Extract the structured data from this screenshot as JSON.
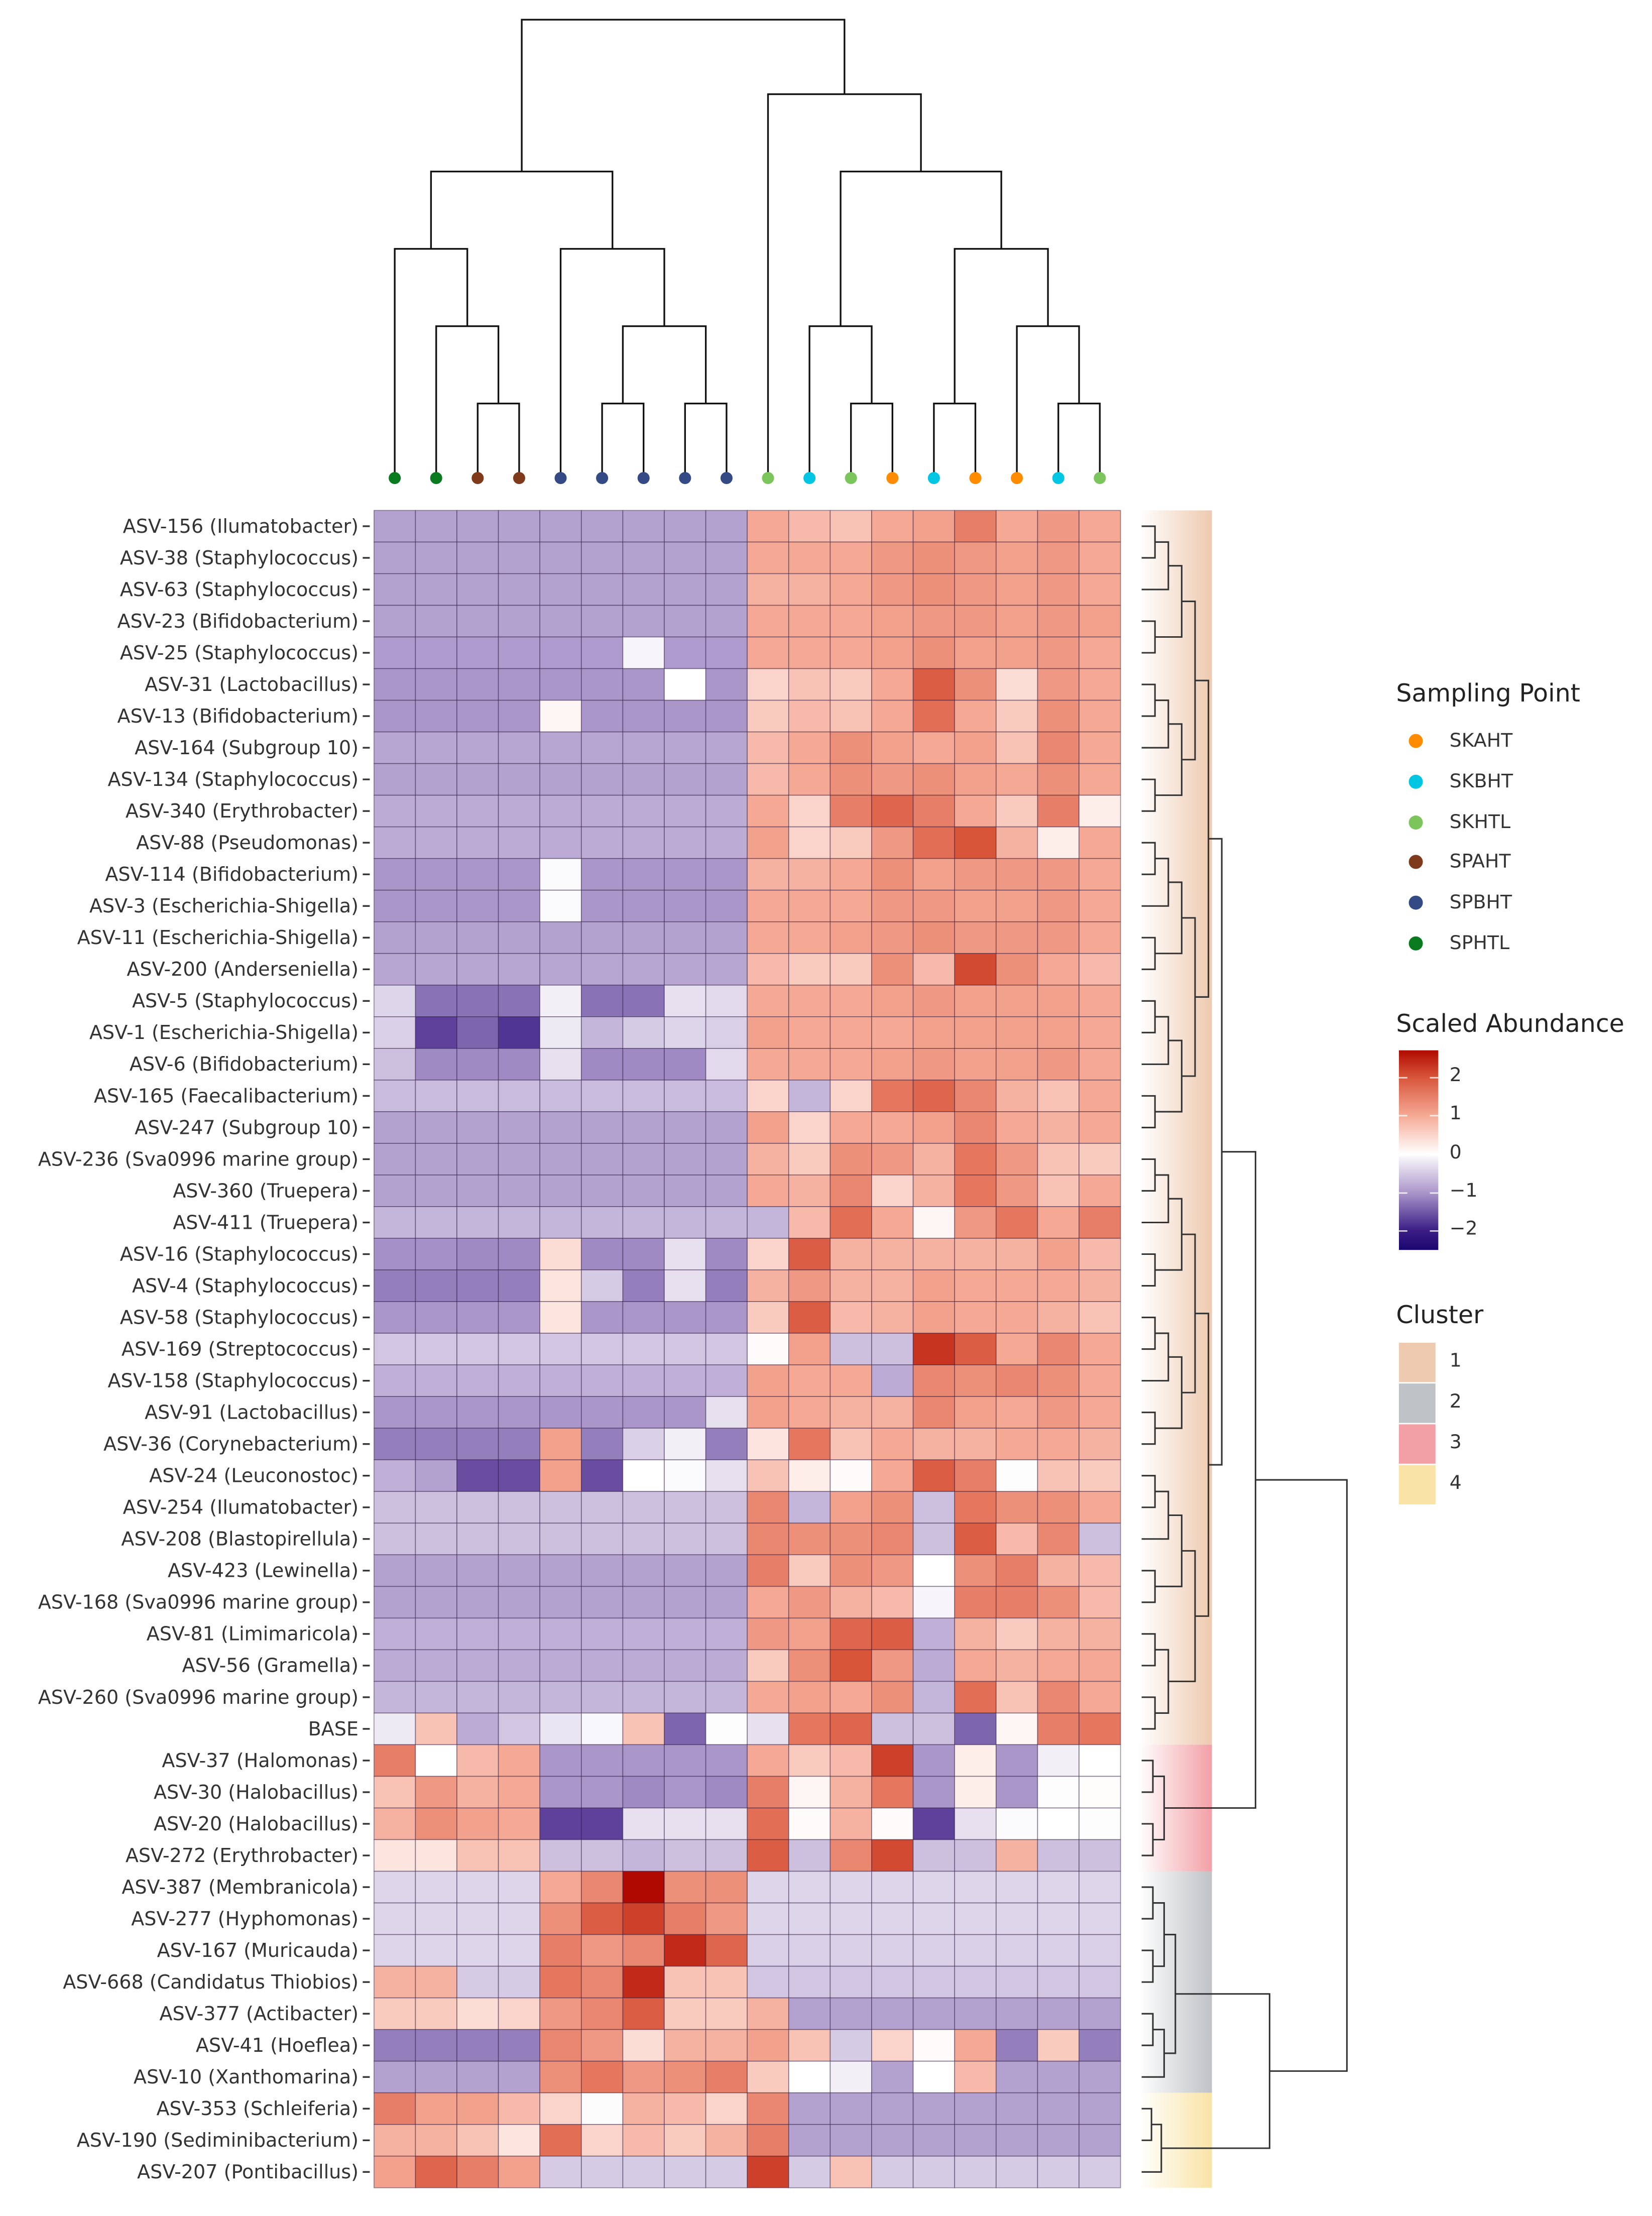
{
  "chart_data": {
    "type": "heatmap",
    "title": "",
    "xlabel": "",
    "ylabel": "",
    "column_sampling_points": [
      "SPHTL",
      "SPHTL",
      "SPAHT",
      "SPAHT",
      "SPBHT",
      "SPBHT",
      "SPBHT",
      "SPBHT",
      "SPBHT",
      "SKHTL",
      "SKBHT",
      "SKHTL",
      "SKAHT",
      "SKBHT",
      "SKAHT",
      "SKAHT",
      "SKBHT",
      "SKHTL"
    ],
    "rows": [
      "ASV-156 (Ilumatobacter)",
      "ASV-38 (Staphylococcus)",
      "ASV-63 (Staphylococcus)",
      "ASV-23 (Bifidobacterium)",
      "ASV-25 (Staphylococcus)",
      "ASV-31 (Lactobacillus)",
      "ASV-13 (Bifidobacterium)",
      "ASV-164 (Subgroup 10)",
      "ASV-134 (Staphylococcus)",
      "ASV-340 (Erythrobacter)",
      "ASV-88 (Pseudomonas)",
      "ASV-114 (Bifidobacterium)",
      "ASV-3 (Escherichia-Shigella)",
      "ASV-11 (Escherichia-Shigella)",
      "ASV-200 (Anderseniella)",
      "ASV-5 (Staphylococcus)",
      "ASV-1 (Escherichia-Shigella)",
      "ASV-6 (Bifidobacterium)",
      "ASV-165 (Faecalibacterium)",
      "ASV-247 (Subgroup 10)",
      "ASV-236 (Sva0996 marine group)",
      "ASV-360 (Truepera)",
      "ASV-411 (Truepera)",
      "ASV-16 (Staphylococcus)",
      "ASV-4 (Staphylococcus)",
      "ASV-58 (Staphylococcus)",
      "ASV-169 (Streptococcus)",
      "ASV-158 (Staphylococcus)",
      "ASV-91 (Lactobacillus)",
      "ASV-36 (Corynebacterium)",
      "ASV-24 (Leuconostoc)",
      "ASV-254 (Ilumatobacter)",
      "ASV-208 (Blastopirellula)",
      "ASV-423 (Lewinella)",
      "ASV-168 (Sva0996 marine group)",
      "ASV-81 (Limimaricola)",
      "ASV-56 (Gramella)",
      "ASV-260 (Sva0996 marine group)",
      "BASE",
      "ASV-37 (Halomonas)",
      "ASV-30 (Halobacillus)",
      "ASV-20 (Halobacillus)",
      "ASV-272 (Erythrobacter)",
      "ASV-387 (Membranicola)",
      "ASV-277 (Hyphomonas)",
      "ASV-167 (Muricauda)",
      "ASV-668 (Candidatus Thiobios)",
      "ASV-377 (Actibacter)",
      "ASV-41 (Hoeflea)",
      "ASV-10 (Xanthomarina)",
      "ASV-353 (Schleiferia)",
      "ASV-190 (Sediminibacterium)",
      "ASV-207 (Pontibacillus)"
    ],
    "row_clusters": [
      1,
      1,
      1,
      1,
      1,
      1,
      1,
      1,
      1,
      1,
      1,
      1,
      1,
      1,
      1,
      1,
      1,
      1,
      1,
      1,
      1,
      1,
      1,
      1,
      1,
      1,
      1,
      1,
      1,
      1,
      1,
      1,
      1,
      1,
      1,
      1,
      1,
      1,
      1,
      3,
      3,
      3,
      3,
      2,
      2,
      2,
      2,
      2,
      2,
      2,
      4,
      4,
      4
    ],
    "values": [
      [
        -0.9,
        -0.9,
        -0.9,
        -0.9,
        -0.9,
        -0.9,
        -0.9,
        -0.9,
        -0.9,
        1.0,
        0.8,
        0.7,
        1.0,
        1.1,
        1.5,
        1.0,
        1.2,
        1.0
      ],
      [
        -0.9,
        -0.9,
        -0.9,
        -0.9,
        -0.9,
        -0.9,
        -0.9,
        -0.9,
        -0.9,
        1.0,
        1.0,
        1.0,
        1.2,
        1.3,
        1.2,
        1.1,
        1.2,
        1.0
      ],
      [
        -0.9,
        -0.9,
        -0.9,
        -0.9,
        -0.9,
        -0.9,
        -0.9,
        -0.9,
        -0.9,
        0.9,
        0.9,
        1.0,
        1.2,
        1.3,
        1.2,
        1.1,
        1.2,
        1.0
      ],
      [
        -0.9,
        -0.9,
        -0.9,
        -0.9,
        -0.9,
        -0.9,
        -0.9,
        -0.9,
        -0.9,
        1.0,
        1.0,
        1.0,
        1.1,
        1.2,
        1.2,
        1.1,
        1.2,
        1.1
      ],
      [
        -0.95,
        -0.95,
        -0.95,
        -0.95,
        -0.95,
        -0.95,
        -0.1,
        -0.95,
        -0.95,
        1.0,
        1.0,
        1.0,
        1.1,
        1.3,
        1.1,
        1.1,
        1.2,
        1.0
      ],
      [
        -1.0,
        -1.0,
        -1.0,
        -1.0,
        -1.0,
        -1.0,
        -1.0,
        0.0,
        -1.0,
        0.5,
        0.7,
        0.6,
        1.0,
        1.9,
        1.3,
        0.4,
        1.2,
        1.0
      ],
      [
        -1.0,
        -1.0,
        -1.0,
        -1.0,
        0.1,
        -1.0,
        -1.0,
        -1.0,
        -1.0,
        0.6,
        0.8,
        0.7,
        1.0,
        1.7,
        1.0,
        0.6,
        1.3,
        1.0
      ],
      [
        -0.85,
        -0.85,
        -0.85,
        -0.85,
        -0.85,
        -0.85,
        -0.85,
        -0.85,
        -0.85,
        0.8,
        1.0,
        1.3,
        1.1,
        1.0,
        1.1,
        0.7,
        1.4,
        1.0
      ],
      [
        -0.9,
        -0.9,
        -0.9,
        -0.9,
        -0.9,
        -0.9,
        -0.9,
        -0.9,
        -0.9,
        0.8,
        1.0,
        1.3,
        1.2,
        1.3,
        1.1,
        1.0,
        1.3,
        1.0
      ],
      [
        -0.8,
        -0.8,
        -0.8,
        -0.8,
        -0.8,
        -0.8,
        -0.8,
        -0.8,
        -0.8,
        1.0,
        0.5,
        1.5,
        1.8,
        1.5,
        1.0,
        0.6,
        1.5,
        0.2
      ],
      [
        -0.8,
        -0.8,
        -0.8,
        -0.8,
        -0.8,
        -0.8,
        -0.8,
        -0.8,
        -0.8,
        1.1,
        0.5,
        0.6,
        1.2,
        1.7,
        2.0,
        0.9,
        0.2,
        1.0
      ],
      [
        -1.0,
        -1.0,
        -1.0,
        -1.0,
        -0.05,
        -1.0,
        -1.0,
        -1.0,
        -1.0,
        0.9,
        0.9,
        1.0,
        1.3,
        1.1,
        1.2,
        1.2,
        1.2,
        1.0
      ],
      [
        -1.0,
        -1.0,
        -1.0,
        -1.0,
        -0.05,
        -1.0,
        -1.0,
        -1.0,
        -1.0,
        1.0,
        1.0,
        1.0,
        1.2,
        1.2,
        1.1,
        1.1,
        1.2,
        1.0
      ],
      [
        -0.9,
        -0.9,
        -0.9,
        -0.9,
        -0.9,
        -0.9,
        -0.9,
        -0.9,
        -0.9,
        1.0,
        1.0,
        1.1,
        1.2,
        1.3,
        1.2,
        1.2,
        1.2,
        1.0
      ],
      [
        -0.85,
        -0.85,
        -0.85,
        -0.85,
        -0.85,
        -0.85,
        -0.85,
        -0.85,
        -0.85,
        0.8,
        0.6,
        0.6,
        1.3,
        0.8,
        2.1,
        1.3,
        1.0,
        0.8
      ],
      [
        -0.4,
        -1.3,
        -1.3,
        -1.3,
        -0.15,
        -1.3,
        -1.3,
        -0.3,
        -0.35,
        1.0,
        1.0,
        1.0,
        1.1,
        1.2,
        1.1,
        1.1,
        1.1,
        1.0
      ],
      [
        -0.45,
        -1.7,
        -1.4,
        -1.8,
        -0.2,
        -0.7,
        -0.5,
        -0.4,
        -0.45,
        1.1,
        1.0,
        1.0,
        1.0,
        1.1,
        1.1,
        1.1,
        1.1,
        1.0
      ],
      [
        -0.6,
        -1.1,
        -1.1,
        -1.1,
        -0.3,
        -1.1,
        -1.1,
        -1.1,
        -0.35,
        1.0,
        1.0,
        1.0,
        1.1,
        1.2,
        1.1,
        1.1,
        1.2,
        1.0
      ],
      [
        -0.65,
        -0.65,
        -0.65,
        -0.65,
        -0.65,
        -0.65,
        -0.65,
        -0.65,
        -0.65,
        0.5,
        -0.7,
        0.5,
        1.6,
        1.8,
        1.4,
        0.9,
        0.7,
        1.0
      ],
      [
        -0.9,
        -0.9,
        -0.9,
        -0.9,
        -0.9,
        -0.9,
        -0.9,
        -0.9,
        -0.9,
        1.1,
        0.5,
        1.0,
        1.0,
        1.1,
        1.4,
        1.0,
        0.9,
        1.0
      ],
      [
        -0.9,
        -0.9,
        -0.9,
        -0.9,
        -0.9,
        -0.9,
        -0.9,
        -0.9,
        -0.9,
        0.9,
        0.6,
        1.3,
        1.2,
        0.9,
        1.6,
        1.2,
        0.7,
        0.6
      ],
      [
        -0.9,
        -0.9,
        -0.9,
        -0.9,
        -0.9,
        -0.9,
        -0.9,
        -0.9,
        -0.9,
        1.0,
        0.9,
        1.4,
        0.5,
        0.9,
        1.6,
        1.2,
        0.7,
        1.0
      ],
      [
        -0.7,
        -0.7,
        -0.7,
        -0.7,
        -0.7,
        -0.7,
        -0.7,
        -0.7,
        -0.7,
        -0.7,
        0.8,
        1.7,
        1.0,
        0.1,
        1.2,
        1.6,
        1.0,
        1.5
      ],
      [
        -1.05,
        -1.05,
        -1.1,
        -1.1,
        0.4,
        -1.1,
        -1.1,
        -0.3,
        -1.1,
        0.5,
        1.9,
        0.9,
        0.9,
        0.9,
        0.9,
        0.9,
        1.1,
        0.8
      ],
      [
        -1.2,
        -1.2,
        -1.2,
        -1.2,
        0.3,
        -0.5,
        -1.2,
        -0.3,
        -1.2,
        0.9,
        1.2,
        0.9,
        0.9,
        1.1,
        1.0,
        1.0,
        1.0,
        0.9
      ],
      [
        -1.0,
        -1.0,
        -1.0,
        -1.0,
        0.3,
        -1.0,
        -1.0,
        -1.0,
        -1.0,
        0.6,
        1.9,
        0.8,
        0.9,
        1.1,
        1.0,
        1.0,
        0.9,
        0.7
      ],
      [
        -0.55,
        -0.55,
        -0.55,
        -0.55,
        -0.55,
        -0.55,
        -0.55,
        -0.55,
        -0.55,
        0.05,
        1.1,
        -0.6,
        -0.6,
        2.3,
        1.9,
        1.0,
        1.4,
        1.0
      ],
      [
        -0.75,
        -0.75,
        -0.75,
        -0.75,
        -0.75,
        -0.75,
        -0.75,
        -0.75,
        -0.75,
        1.1,
        1.0,
        1.0,
        -0.8,
        1.4,
        1.3,
        1.4,
        1.3,
        1.0
      ],
      [
        -1.0,
        -1.0,
        -1.0,
        -1.0,
        -1.0,
        -1.0,
        -1.0,
        -1.0,
        -0.3,
        1.1,
        1.0,
        0.9,
        0.9,
        1.4,
        1.1,
        1.0,
        1.2,
        1.0
      ],
      [
        -1.2,
        -1.2,
        -1.2,
        -1.2,
        1.1,
        -1.2,
        -0.45,
        -0.15,
        -1.2,
        0.3,
        1.6,
        0.7,
        1.0,
        0.9,
        0.9,
        1.0,
        1.0,
        0.9
      ],
      [
        -0.75,
        -0.9,
        -1.6,
        -1.6,
        1.1,
        -1.6,
        0.0,
        -0.05,
        -0.3,
        0.7,
        0.2,
        0.05,
        1.0,
        1.9,
        1.5,
        -0.02,
        0.7,
        0.6
      ],
      [
        -0.6,
        -0.6,
        -0.6,
        -0.6,
        -0.6,
        -0.6,
        -0.6,
        -0.6,
        -0.6,
        1.4,
        -0.7,
        1.1,
        1.3,
        -0.6,
        1.6,
        1.3,
        1.3,
        1.0
      ],
      [
        -0.6,
        -0.6,
        -0.6,
        -0.6,
        -0.6,
        -0.6,
        -0.6,
        -0.6,
        -0.6,
        1.4,
        1.3,
        1.3,
        1.4,
        -0.6,
        1.9,
        0.8,
        1.4,
        -0.6
      ],
      [
        -0.9,
        -0.9,
        -0.9,
        -0.9,
        -0.9,
        -0.9,
        -0.9,
        -0.9,
        -0.9,
        1.5,
        0.6,
        1.3,
        1.2,
        0.0,
        1.3,
        1.5,
        0.9,
        0.8
      ],
      [
        -0.9,
        -0.9,
        -0.9,
        -0.9,
        -0.9,
        -0.9,
        -0.9,
        -0.9,
        -0.9,
        1.0,
        1.2,
        0.9,
        0.8,
        -0.1,
        1.5,
        1.5,
        1.3,
        0.8
      ],
      [
        -0.75,
        -0.75,
        -0.75,
        -0.75,
        -0.75,
        -0.75,
        -0.75,
        -0.75,
        -0.75,
        1.2,
        1.1,
        1.8,
        1.9,
        -0.75,
        0.9,
        0.6,
        0.9,
        0.9
      ],
      [
        -0.8,
        -0.8,
        -0.8,
        -0.8,
        -0.8,
        -0.8,
        -0.8,
        -0.8,
        -0.8,
        0.6,
        1.3,
        2.0,
        1.2,
        -0.8,
        1.0,
        0.9,
        1.0,
        1.0
      ],
      [
        -0.7,
        -0.7,
        -0.7,
        -0.7,
        -0.7,
        -0.7,
        -0.7,
        -0.7,
        -0.7,
        1.0,
        1.1,
        1.0,
        1.3,
        -0.7,
        1.7,
        0.7,
        1.4,
        1.0
      ],
      [
        -0.2,
        0.7,
        -0.8,
        -0.55,
        -0.25,
        -0.08,
        0.7,
        -1.4,
        -0.02,
        -0.3,
        1.6,
        1.8,
        -0.6,
        -0.6,
        -1.4,
        0.1,
        1.5,
        1.6
      ],
      [
        1.5,
        0.0,
        0.8,
        1.0,
        -1.0,
        -1.0,
        -1.0,
        -1.0,
        -1.0,
        1.0,
        0.6,
        0.8,
        2.2,
        -1.0,
        0.2,
        -1.0,
        -0.15,
        0.0
      ],
      [
        0.7,
        1.2,
        0.9,
        1.0,
        -1.0,
        -1.0,
        -1.1,
        -1.0,
        -1.1,
        1.5,
        0.1,
        0.9,
        1.6,
        -1.0,
        0.2,
        -1.0,
        -0.02,
        0.03
      ],
      [
        0.9,
        1.3,
        1.1,
        1.0,
        -1.7,
        -1.7,
        -0.3,
        -0.3,
        -0.3,
        1.7,
        0.05,
        0.9,
        0.05,
        -1.7,
        -0.3,
        -0.05,
        0.0,
        -0.02
      ],
      [
        0.3,
        0.3,
        0.7,
        0.7,
        -0.6,
        -0.6,
        -0.7,
        -0.6,
        -0.6,
        1.9,
        -0.6,
        1.4,
        2.1,
        -0.6,
        -0.6,
        0.9,
        -0.6,
        -0.6
      ],
      [
        -0.4,
        -0.4,
        -0.4,
        -0.4,
        1.0,
        1.4,
        2.7,
        1.3,
        1.3,
        -0.4,
        -0.4,
        -0.4,
        -0.4,
        -0.4,
        -0.4,
        -0.4,
        -0.4,
        -0.4
      ],
      [
        -0.4,
        -0.4,
        -0.4,
        -0.4,
        1.3,
        1.9,
        2.2,
        1.5,
        1.2,
        -0.4,
        -0.4,
        -0.4,
        -0.4,
        -0.4,
        -0.4,
        -0.4,
        -0.4,
        -0.4
      ],
      [
        -0.4,
        -0.4,
        -0.4,
        -0.4,
        1.5,
        1.2,
        1.4,
        2.4,
        1.8,
        -0.45,
        -0.45,
        -0.45,
        -0.45,
        -0.45,
        -0.45,
        -0.45,
        -0.45,
        -0.45
      ],
      [
        0.9,
        0.9,
        -0.5,
        -0.5,
        1.6,
        1.4,
        2.4,
        0.7,
        0.7,
        -0.55,
        -0.55,
        -0.55,
        -0.55,
        -0.55,
        -0.55,
        -0.55,
        -0.55,
        -0.55
      ],
      [
        0.6,
        0.6,
        0.4,
        0.5,
        1.2,
        1.4,
        1.9,
        0.6,
        0.6,
        0.9,
        -0.9,
        -0.9,
        -0.9,
        -0.9,
        -0.9,
        -0.9,
        -0.9,
        -0.9
      ],
      [
        -1.2,
        -1.2,
        -1.2,
        -1.2,
        1.4,
        1.2,
        0.4,
        0.9,
        0.9,
        1.1,
        0.7,
        -0.5,
        0.5,
        0.05,
        1.0,
        -1.2,
        0.6,
        -1.2
      ],
      [
        -0.9,
        -0.9,
        -0.9,
        -0.9,
        1.3,
        1.6,
        1.2,
        1.3,
        1.5,
        0.6,
        0.0,
        -0.15,
        -0.9,
        0.0,
        0.8,
        -0.9,
        -0.9,
        -0.9
      ],
      [
        1.5,
        1.1,
        1.1,
        0.8,
        0.5,
        -0.03,
        0.9,
        0.8,
        0.5,
        1.4,
        -0.9,
        -0.9,
        -0.9,
        -0.9,
        -0.9,
        -0.9,
        -0.9,
        -0.9
      ],
      [
        0.9,
        0.9,
        0.7,
        0.3,
        1.7,
        0.5,
        0.8,
        0.6,
        0.9,
        1.5,
        -0.9,
        -0.9,
        -0.9,
        -0.9,
        -0.9,
        -0.9,
        -0.9,
        -0.9
      ],
      [
        1.1,
        1.8,
        1.5,
        1.1,
        -0.5,
        -0.5,
        -0.5,
        -0.5,
        -0.5,
        2.2,
        -0.5,
        0.7,
        -0.5,
        -0.5,
        -0.5,
        -0.5,
        -0.5,
        -0.5
      ]
    ],
    "color_scale": {
      "range": [
        -2.5,
        2.7
      ],
      "stops": [
        {
          "value": -2.5,
          "color": "#1a0670"
        },
        {
          "value": -2,
          "color": "#3b1d85"
        },
        {
          "value": -1,
          "color": "#ab96ca"
        },
        {
          "value": 0,
          "color": "#ffffff"
        },
        {
          "value": 1,
          "color": "#f5a995"
        },
        {
          "value": 2,
          "color": "#d8553a"
        },
        {
          "value": 2.7,
          "color": "#b00a00"
        }
      ]
    }
  },
  "legend_sampling": {
    "title": "Sampling Point",
    "items": [
      {
        "label": "SKAHT",
        "color": "#ff8c00"
      },
      {
        "label": "SKBHT",
        "color": "#00c5e3"
      },
      {
        "label": "SKHTL",
        "color": "#7cc45c"
      },
      {
        "label": "SPAHT",
        "color": "#7f3a1c"
      },
      {
        "label": "SPBHT",
        "color": "#334a85"
      },
      {
        "label": "SPHTL",
        "color": "#0a7a1e"
      }
    ]
  },
  "legend_scale": {
    "title": "Scaled Abundance",
    "ticks": [
      {
        "value": 2,
        "label": "2"
      },
      {
        "value": 1,
        "label": "1"
      },
      {
        "value": 0,
        "label": "0"
      },
      {
        "value": -1,
        "label": "−1"
      },
      {
        "value": -2,
        "label": "−2"
      }
    ]
  },
  "legend_cluster": {
    "title": "Cluster",
    "items": [
      {
        "label": "1",
        "color": "#eecab0"
      },
      {
        "label": "2",
        "color": "#bfc2c6"
      },
      {
        "label": "3",
        "color": "#f2a0a6"
      },
      {
        "label": "4",
        "color": "#f9e3a6"
      }
    ]
  }
}
